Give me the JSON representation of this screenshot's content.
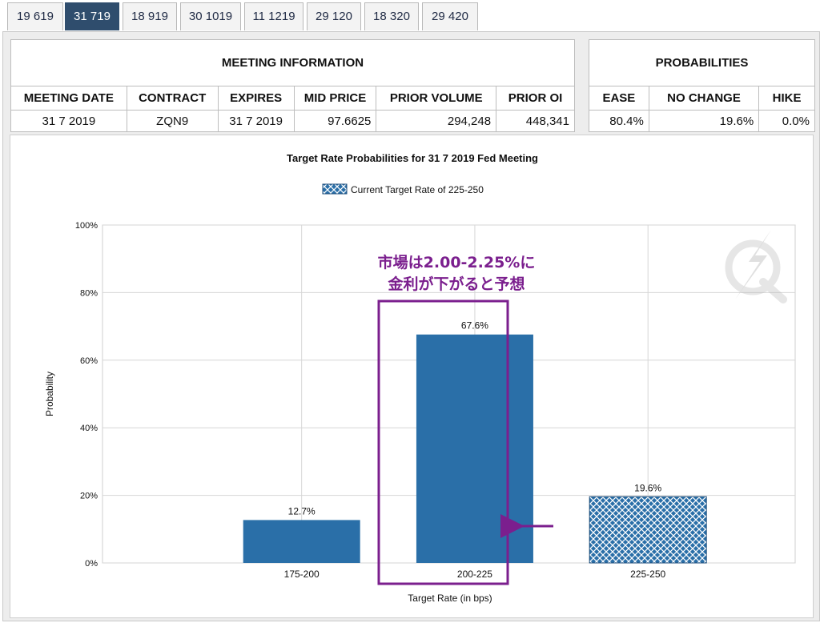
{
  "tabs": [
    {
      "label": "19 619",
      "active": false
    },
    {
      "label": "31 719",
      "active": true
    },
    {
      "label": "18 919",
      "active": false
    },
    {
      "label": "30 1019",
      "active": false
    },
    {
      "label": "11 1219",
      "active": false
    },
    {
      "label": "29 120",
      "active": false
    },
    {
      "label": "18 320",
      "active": false
    },
    {
      "label": "29 420",
      "active": false
    }
  ],
  "meeting_info": {
    "title": "MEETING INFORMATION",
    "headers": [
      "MEETING DATE",
      "CONTRACT",
      "EXPIRES",
      "MID PRICE",
      "PRIOR VOLUME",
      "PRIOR OI"
    ],
    "values": [
      "31 7 2019",
      "ZQN9",
      "31 7 2019",
      "97.6625",
      "294,248",
      "448,341"
    ]
  },
  "probabilities": {
    "title": "PROBABILITIES",
    "headers": [
      "EASE",
      "NO CHANGE",
      "HIKE"
    ],
    "values": [
      "80.4%",
      "19.6%",
      "0.0%"
    ]
  },
  "chart_data": {
    "type": "bar",
    "title": "Target Rate Probabilities for 31 7 2019 Fed Meeting",
    "legend": "Current Target Rate of 225-250",
    "legend_position": "top",
    "xlabel": "Target Rate (in bps)",
    "ylabel": "Probability",
    "ylim": [
      0,
      100
    ],
    "yticks": [
      "0%",
      "20%",
      "40%",
      "60%",
      "80%",
      "100%"
    ],
    "grid": true,
    "categories": [
      "175-200",
      "200-225",
      "225-250"
    ],
    "values": [
      12.7,
      67.6,
      19.6
    ],
    "value_labels": [
      "12.7%",
      "67.6%",
      "19.6%"
    ],
    "current_rate_category": "225-250",
    "colors": {
      "bar": "#2a6fa8",
      "hatch_bg": "#2a6fa8",
      "hatch_line": "#ffffff",
      "annotation": "#7b1f8e"
    }
  },
  "annotation": {
    "line1": "市場は2.00-2.25%に",
    "line2": "金利が下がると予想"
  }
}
